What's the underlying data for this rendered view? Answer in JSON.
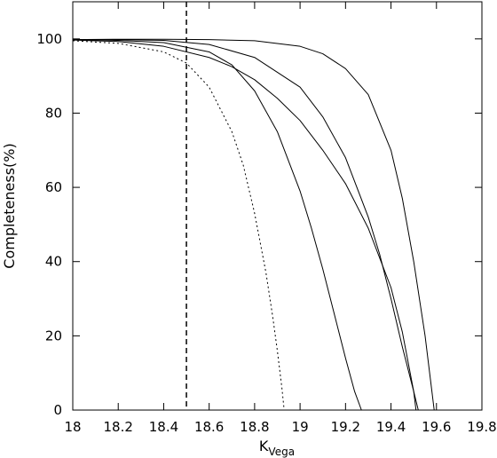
{
  "chart_data": {
    "type": "line",
    "title": "",
    "xlabel": "K",
    "xlabel_subscript": "Vega",
    "ylabel": "Completeness(%)",
    "xlim": [
      18,
      19.8
    ],
    "ylim": [
      0,
      110
    ],
    "x_ticks": [
      18,
      18.2,
      18.4,
      18.6,
      18.8,
      19,
      19.2,
      19.4,
      19.6,
      19.8
    ],
    "x_tick_labels": [
      "18",
      "18.2",
      "18.4",
      "18.6",
      "18.8",
      "19",
      "19.2",
      "19.4",
      "19.6",
      "19.8"
    ],
    "y_ticks": [
      0,
      20,
      40,
      60,
      80,
      100
    ],
    "y_tick_labels": [
      "0",
      "20",
      "40",
      "60",
      "80",
      "100"
    ],
    "grid": false,
    "legend": "none",
    "vertical_line": {
      "x": 18.5,
      "style": "dashed"
    },
    "series": [
      {
        "style": "solid",
        "x": [
          18.0,
          18.2,
          18.4,
          18.6,
          18.8,
          19.0,
          19.1,
          19.2,
          19.3,
          19.4,
          19.45,
          19.5,
          19.55,
          19.58,
          19.59
        ],
        "y": [
          99.8,
          99.9,
          99.9,
          99.8,
          99.5,
          98.0,
          96.0,
          92.0,
          85.0,
          70.0,
          57.0,
          40.0,
          20.0,
          5.0,
          0.0
        ]
      },
      {
        "style": "solid",
        "x": [
          18.0,
          18.2,
          18.4,
          18.6,
          18.8,
          19.0,
          19.1,
          19.2,
          19.3,
          19.35,
          19.4,
          19.45,
          19.5,
          19.52
        ],
        "y": [
          99.8,
          99.8,
          99.6,
          98.5,
          95.0,
          87.0,
          79.0,
          68.0,
          52.0,
          42.0,
          30.0,
          17.0,
          5.0,
          0.0
        ]
      },
      {
        "style": "solid",
        "x": [
          18.0,
          18.2,
          18.4,
          18.6,
          18.7,
          18.8,
          18.9,
          19.0,
          19.1,
          19.2,
          19.3,
          19.4,
          19.45,
          19.5,
          19.51
        ],
        "y": [
          99.7,
          99.3,
          98.0,
          95.0,
          92.5,
          89.0,
          84.0,
          78.0,
          70.0,
          61.0,
          49.0,
          33.0,
          21.0,
          5.0,
          0.0
        ]
      },
      {
        "style": "solid",
        "x": [
          18.0,
          18.2,
          18.4,
          18.6,
          18.7,
          18.8,
          18.9,
          19.0,
          19.05,
          19.1,
          19.15,
          19.2,
          19.24,
          19.27
        ],
        "y": [
          99.8,
          99.6,
          99.0,
          96.5,
          93.0,
          86.0,
          75.0,
          59.0,
          49.0,
          38.0,
          26.0,
          14.0,
          5.0,
          0.0
        ]
      },
      {
        "style": "dotted",
        "x": [
          18.0,
          18.2,
          18.4,
          18.5,
          18.6,
          18.7,
          18.75,
          18.8,
          18.85,
          18.88,
          18.9,
          18.92,
          18.93
        ],
        "y": [
          99.5,
          98.8,
          96.5,
          93.5,
          87.0,
          75.0,
          66.0,
          53.0,
          37.0,
          25.0,
          16.0,
          6.0,
          0.0
        ]
      }
    ]
  }
}
